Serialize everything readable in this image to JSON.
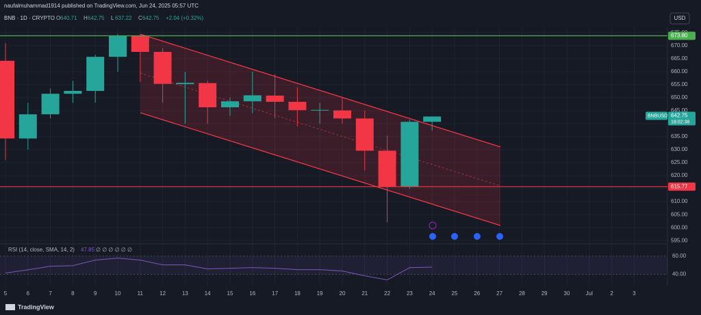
{
  "header": {
    "author_line": "naufalmuhammad1914 published on TradingView.com, Jun 24, 2025 05:57 UTC",
    "currency_button": "USD",
    "footer_brand": "TradingView"
  },
  "chart_data": {
    "type": "candlestick",
    "title": "BNB · 1D · CRYPTO",
    "ohlc_legend": [
      {
        "label": "O",
        "value": 640.71
      },
      {
        "label": "H",
        "value": 642.75
      },
      {
        "label": "L",
        "value": 637.22
      },
      {
        "label": "C",
        "value": 642.75
      }
    ],
    "change": "+2.04 (+0.32%)",
    "categories": [
      "5",
      "6",
      "7",
      "8",
      "9",
      "10",
      "11",
      "12",
      "13",
      "14",
      "15",
      "16",
      "17",
      "18",
      "19",
      "20",
      "21",
      "22",
      "23",
      "24",
      "25",
      "26",
      "27",
      "28",
      "29",
      "30",
      "Jul",
      "2",
      "3"
    ],
    "open": [
      664.2,
      634.3,
      643.6,
      651.5,
      652.6,
      665.7,
      673.8,
      667.6,
      655.2,
      655.6,
      646.3,
      648.6,
      650.8,
      648.4,
      645.2,
      645.1,
      642.0,
      629.6,
      615.8,
      640.71,
      null,
      null,
      null,
      null,
      null,
      null,
      null,
      null,
      null
    ],
    "high": [
      671,
      648,
      653.5,
      656.5,
      666.5,
      674.5,
      674.3,
      669,
      660,
      656.5,
      650,
      660,
      659,
      654,
      648,
      650,
      645,
      635.5,
      641.5,
      642.75,
      null,
      null,
      null,
      null,
      null,
      null,
      null,
      null,
      null
    ],
    "low": [
      626,
      630,
      642,
      648,
      648,
      660,
      656,
      648,
      640,
      640,
      643,
      644,
      642,
      639,
      640,
      640,
      622,
      602,
      615,
      637.22,
      null,
      null,
      null,
      null,
      null,
      null,
      null,
      null,
      null
    ],
    "close": [
      634.3,
      643.6,
      651.5,
      652.6,
      665.7,
      673.8,
      667.6,
      655.3,
      655.7,
      646.3,
      648.6,
      650.9,
      648.4,
      645.2,
      645.3,
      642.0,
      629.6,
      615.8,
      640.7,
      642.75,
      null,
      null,
      null,
      null,
      null,
      null,
      null,
      null,
      null
    ],
    "up_color": "#26a69a",
    "down_color": "#f23645",
    "ylim": [
      594,
      676
    ],
    "yticks": [
      {
        "value": 595,
        "label": "595.00"
      },
      {
        "value": 600,
        "label": "600.00"
      },
      {
        "value": 605,
        "label": "605.00"
      },
      {
        "value": 610,
        "label": "610.00"
      },
      {
        "value": 615,
        "label": "615.00"
      },
      {
        "value": 620,
        "label": "620.00"
      },
      {
        "value": 625,
        "label": "625.00"
      },
      {
        "value": 630,
        "label": "630.00"
      },
      {
        "value": 635,
        "label": "635.00"
      },
      {
        "value": 640,
        "label": "640.00"
      },
      {
        "value": 645,
        "label": "645.00"
      },
      {
        "value": 650,
        "label": "650.00"
      },
      {
        "value": 655,
        "label": "655.00"
      },
      {
        "value": 660,
        "label": "660.00"
      },
      {
        "value": 665,
        "label": "665.00"
      },
      {
        "value": 670,
        "label": "670.00"
      },
      {
        "value": 675,
        "label": "675.00"
      }
    ],
    "grid": true,
    "levels": [
      {
        "value": 673.8,
        "label": "673.80",
        "color": "#4caf50"
      },
      {
        "value": 615.77,
        "label": "615.77",
        "color": "#f23645"
      }
    ],
    "last_price": {
      "symbol": "BNBUSD",
      "value": 642.75,
      "countdown": "18:02:38",
      "color": "#26a69a"
    },
    "rsi": {
      "title": "RSI (14, close, SMA, 14, 2)",
      "last": 47.85,
      "placeholders": "∅ ∅ ∅ ∅ ∅ ∅",
      "color": "#7e57c2",
      "values": [
        41.5,
        45,
        48.9,
        49.6,
        55.6,
        57.8,
        55.6,
        50.4,
        50.4,
        46,
        46.7,
        47.4,
        46.7,
        45.2,
        45.2,
        43.7,
        38.5,
        34,
        47.4,
        47.85,
        null,
        null,
        null,
        null,
        null,
        null,
        null,
        null,
        null
      ],
      "ylim": [
        30,
        71
      ],
      "yticks": [
        {
          "value": 40,
          "label": "40.00"
        },
        {
          "value": 60,
          "label": "60.00"
        }
      ]
    }
  }
}
